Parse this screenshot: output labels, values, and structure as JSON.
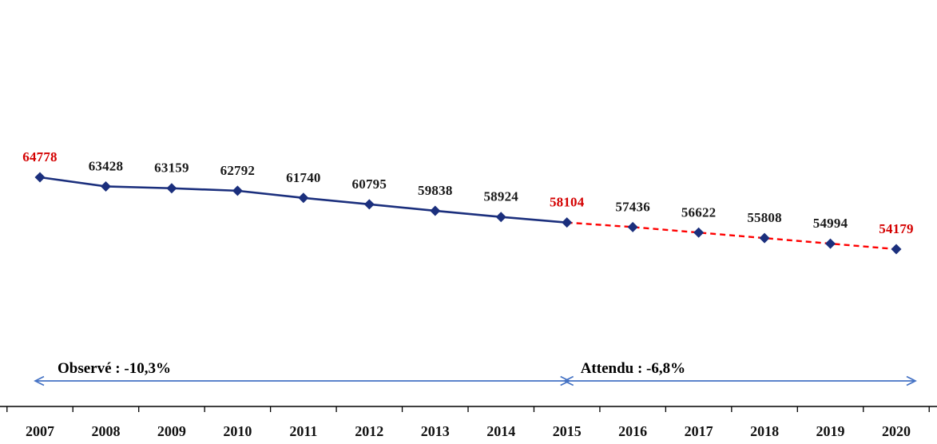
{
  "chart_data": {
    "type": "line",
    "title": "",
    "xlabel": "",
    "ylabel": "",
    "grid": false,
    "legend": false,
    "categories": [
      "2007",
      "2008",
      "2009",
      "2010",
      "2011",
      "2012",
      "2013",
      "2014",
      "2015",
      "2016",
      "2017",
      "2018",
      "2019",
      "2020"
    ],
    "values": [
      64778,
      63428,
      63159,
      62792,
      61740,
      60795,
      59838,
      58924,
      58104,
      57436,
      56622,
      55808,
      54994,
      54179
    ],
    "series": [
      {
        "name": "Observé",
        "style": "solid",
        "color": "#1B2F7D",
        "indices": [
          0,
          8
        ],
        "values": [
          64778,
          63428,
          63159,
          62792,
          61740,
          60795,
          59838,
          58924,
          58104
        ]
      },
      {
        "name": "Attendu",
        "style": "dashed",
        "color": "#FF0000",
        "indices": [
          8,
          13
        ],
        "values": [
          58104,
          57436,
          56622,
          55808,
          54994,
          54179
        ]
      }
    ],
    "marker_color": "#1B2F7D",
    "label_color_default": "#1A1A1A",
    "label_color_highlight": "#D40000",
    "highlight_label_indices": [
      0,
      8,
      13
    ],
    "annotations": [
      {
        "text": "Observé : -10,3%",
        "span": [
          0,
          8
        ]
      },
      {
        "text": "Attendu : -6,8%",
        "span": [
          8,
          13
        ]
      }
    ],
    "arrow_color": "#4472C4",
    "axis_color": "#000000",
    "ylim": [
      52000,
      66000
    ]
  }
}
